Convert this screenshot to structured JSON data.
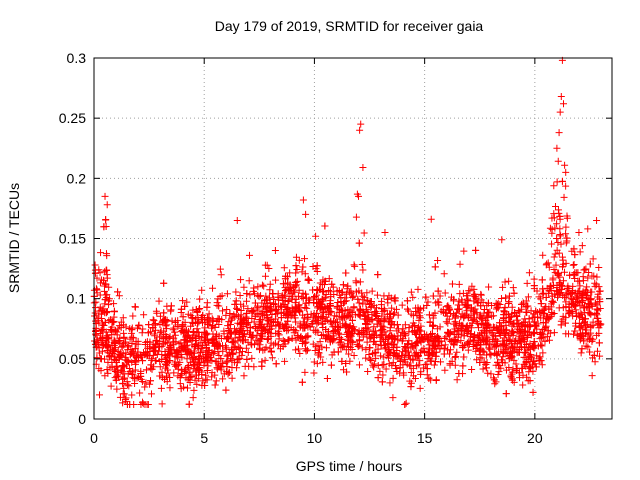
{
  "chart_data": {
    "type": "scatter",
    "title": "Day 179 of 2019, SRMTID for receiver gaia",
    "xlabel": "GPS time / hours",
    "ylabel": "SRMTID / TECUs",
    "xlim": [
      0,
      23.5
    ],
    "ylim": [
      0,
      0.3
    ],
    "x_ticks": [
      0,
      5,
      10,
      15,
      20
    ],
    "x_tick_labels": [
      "0",
      "5",
      "10",
      "15",
      "20"
    ],
    "y_ticks": [
      0,
      0.05,
      0.1,
      0.15,
      0.2,
      0.25,
      0.3
    ],
    "y_tick_labels": [
      "0",
      "0.05",
      "0.1",
      "0.15",
      "0.2",
      "0.25",
      "0.3"
    ],
    "grid": true,
    "legend": "none",
    "marker": "plus",
    "series": [
      {
        "name": "SRMTID",
        "color": "#ff0000",
        "baseline_profile": [
          [
            0.0,
            0.085
          ],
          [
            0.5,
            0.08
          ],
          [
            1.0,
            0.055
          ],
          [
            1.5,
            0.045
          ],
          [
            2.0,
            0.048
          ],
          [
            3.0,
            0.06
          ],
          [
            4.0,
            0.058
          ],
          [
            5.0,
            0.062
          ],
          [
            6.0,
            0.068
          ],
          [
            7.0,
            0.072
          ],
          [
            8.0,
            0.085
          ],
          [
            9.0,
            0.09
          ],
          [
            10.0,
            0.085
          ],
          [
            11.0,
            0.08
          ],
          [
            12.0,
            0.082
          ],
          [
            13.0,
            0.068
          ],
          [
            14.0,
            0.062
          ],
          [
            15.0,
            0.065
          ],
          [
            16.0,
            0.075
          ],
          [
            17.0,
            0.078
          ],
          [
            18.0,
            0.068
          ],
          [
            19.0,
            0.065
          ],
          [
            20.0,
            0.07
          ],
          [
            20.5,
            0.09
          ],
          [
            21.0,
            0.11
          ],
          [
            22.0,
            0.095
          ],
          [
            23.0,
            0.08
          ]
        ],
        "notable_points": [
          [
            0.05,
            0.128
          ],
          [
            0.25,
            0.02
          ],
          [
            0.5,
            0.185
          ],
          [
            0.6,
            0.178
          ],
          [
            0.55,
            0.16
          ],
          [
            1.2,
            0.018
          ],
          [
            1.8,
            0.012
          ],
          [
            6.5,
            0.165
          ],
          [
            9.5,
            0.182
          ],
          [
            9.6,
            0.17
          ],
          [
            12.1,
            0.245
          ],
          [
            12.05,
            0.24
          ],
          [
            12.2,
            0.209
          ],
          [
            12.0,
            0.185
          ],
          [
            13.2,
            0.155
          ],
          [
            15.3,
            0.166
          ],
          [
            18.5,
            0.149
          ],
          [
            21.0,
            0.225
          ],
          [
            21.1,
            0.238
          ],
          [
            21.15,
            0.255
          ],
          [
            21.2,
            0.268
          ],
          [
            21.3,
            0.262
          ],
          [
            21.25,
            0.298
          ],
          [
            21.4,
            0.205
          ],
          [
            22.0,
            0.155
          ],
          [
            22.4,
            0.158
          ],
          [
            22.8,
            0.165
          ],
          [
            22.6,
            0.036
          ],
          [
            22.1,
            0.055
          ]
        ]
      }
    ]
  }
}
